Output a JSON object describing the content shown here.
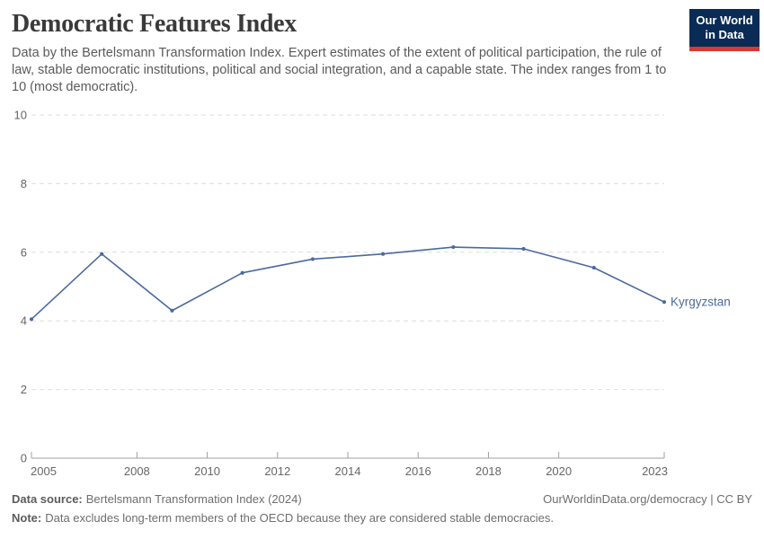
{
  "header": {
    "title": "Democratic Features Index",
    "subtitle": "Data by the Bertelsmann Transformation Index. Expert estimates of the extent of political participation, the rule of law, stable democratic institutions, political and social integration, and a capable state. The index ranges from 1 to 10 (most democratic).",
    "logo": {
      "line1": "Our World",
      "line2": "in Data",
      "bg_color": "#0a2b55",
      "bar_color": "#d73a33"
    }
  },
  "chart_data": {
    "type": "line",
    "title": "Democratic Features Index",
    "x": [
      2005,
      2007,
      2009,
      2011,
      2013,
      2015,
      2017,
      2019,
      2021,
      2023
    ],
    "series": [
      {
        "name": "Kyrgyzstan",
        "color": "#4c6a9c",
        "values": [
          4.05,
          5.95,
          4.3,
          5.4,
          5.8,
          5.95,
          6.15,
          6.1,
          5.55,
          4.55
        ]
      }
    ],
    "xlim": [
      2005,
      2023
    ],
    "ylim": [
      0,
      10
    ],
    "yticks": [
      0,
      2,
      4,
      6,
      8,
      10
    ],
    "xticks": [
      2005,
      2008,
      2010,
      2012,
      2014,
      2016,
      2018,
      2020,
      2023
    ],
    "xlabel": "",
    "ylabel": "",
    "grid": "horizontal-dashed",
    "legend": "end-of-line-label"
  },
  "footer": {
    "source_label": "Data source:",
    "source_text": "Bertelsmann Transformation Index (2024)",
    "right_text": "OurWorldinData.org/democracy | CC BY",
    "note_label": "Note:",
    "note_text": "Data excludes long-term members of the OECD because they are considered stable democracies."
  },
  "colors": {
    "line": "#4c6a9c",
    "grid": "#dedede",
    "axis": "#a0a0a0",
    "tick_label": "#666666",
    "title": "#3a3a3a",
    "subtitle": "#5a5a5a",
    "footer": "#6d6d6d"
  }
}
